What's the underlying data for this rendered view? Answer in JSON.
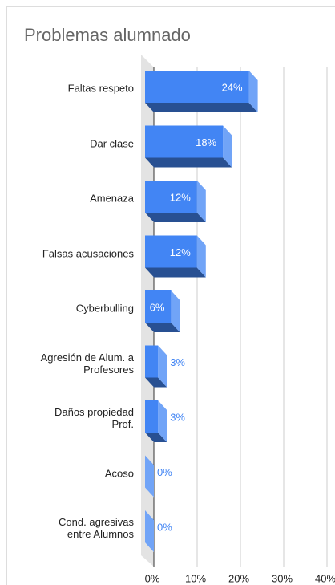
{
  "chart_data": {
    "type": "bar3d",
    "title": "Problemas alumnado",
    "categories": [
      "Faltas respeto",
      "Dar clase",
      "Amenaza",
      "Falsas acusaciones",
      "Cyberbulling",
      "Agresión de Alum. a\nProfesores",
      "Daños propiedad\nProf.",
      "Acoso",
      "Cond. agresivas\nentre Alumnos"
    ],
    "values": [
      24,
      18,
      12,
      12,
      6,
      3,
      3,
      0,
      0
    ],
    "value_labels": [
      "24%",
      "18%",
      "12%",
      "12%",
      "6%",
      "3%",
      "3%",
      "0%",
      "0%"
    ],
    "color": "#4285f4",
    "xlim": [
      0,
      40
    ],
    "xticks": [
      {
        "value": 0,
        "label": "0%"
      },
      {
        "value": 10,
        "label": "10%"
      },
      {
        "value": 20,
        "label": "20%"
      },
      {
        "value": 30,
        "label": "30%"
      },
      {
        "value": 40,
        "label": "40%"
      }
    ],
    "grid": true
  }
}
